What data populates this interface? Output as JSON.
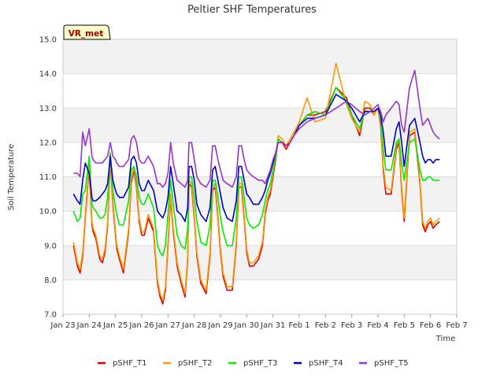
{
  "chart_data": {
    "type": "line",
    "title": "Peltier SHF Temperatures",
    "xlabel": "Time",
    "ylabel": "Soil Temperature",
    "ylim": [
      7.0,
      15.0
    ],
    "y_ticks": [
      "7.0",
      "8.0",
      "9.0",
      "10.0",
      "11.0",
      "12.0",
      "13.0",
      "14.0",
      "15.0"
    ],
    "x_tick_labels": [
      "Jan 23",
      "Jan 24",
      "Jan 25",
      "Jan 26",
      "Jan 27",
      "Jan 28",
      "Jan 29",
      "Jan 30",
      "Jan 31",
      "Feb 1",
      "Feb 2",
      "Feb 3",
      "Feb 4",
      "Feb 5",
      "Feb 6",
      "Feb 7"
    ],
    "x_unit": "days since Jan 23 (tick index)",
    "xlim": [
      0,
      15
    ],
    "badge": "VR_met",
    "grid": "horizontal bands",
    "legend_position": "bottom",
    "series": [
      {
        "name": "pSHF_T1",
        "color": "#dd0000",
        "x": [
          0.4,
          0.55,
          0.65,
          0.75,
          0.85,
          1.0,
          1.1,
          1.15,
          1.25,
          1.4,
          1.5,
          1.6,
          1.7,
          1.8,
          1.9,
          2.0,
          2.05,
          2.15,
          2.3,
          2.5,
          2.6,
          2.7,
          2.8,
          2.9,
          3.0,
          3.1,
          3.25,
          3.45,
          3.6,
          3.7,
          3.8,
          3.9,
          4.0,
          4.1,
          4.2,
          4.35,
          4.5,
          4.65,
          4.75,
          4.8,
          4.9,
          5.0,
          5.1,
          5.25,
          5.45,
          5.6,
          5.7,
          5.8,
          5.9,
          6.0,
          6.1,
          6.25,
          6.45,
          6.6,
          6.7,
          6.8,
          6.9,
          7.0,
          7.1,
          7.25,
          7.45,
          7.6,
          7.7,
          7.8,
          7.9,
          8.0,
          8.1,
          8.2,
          8.35,
          8.5,
          8.65,
          8.8,
          9.0,
          9.3,
          9.6,
          10.0,
          10.4,
          10.8,
          11.0,
          11.15,
          11.3,
          11.5,
          11.7,
          11.85,
          12.0,
          12.1,
          12.2,
          12.3,
          12.5,
          12.7,
          12.8,
          12.9,
          13.0,
          13.2,
          13.4,
          13.6,
          13.7,
          13.8,
          13.9,
          14.0,
          14.1,
          14.2,
          14.35
        ],
        "y": [
          9.0,
          8.4,
          8.2,
          8.7,
          9.8,
          11.3,
          9.6,
          9.4,
          9.2,
          8.6,
          8.5,
          8.8,
          9.6,
          11.5,
          10.2,
          9.3,
          8.9,
          8.6,
          8.2,
          9.4,
          10.8,
          11.2,
          10.7,
          9.7,
          9.3,
          9.3,
          9.8,
          9.4,
          7.9,
          7.5,
          7.3,
          7.7,
          9.0,
          10.4,
          9.4,
          8.4,
          7.9,
          7.5,
          8.6,
          10.8,
          10.7,
          9.8,
          8.7,
          7.9,
          7.6,
          8.7,
          10.6,
          10.7,
          9.8,
          8.8,
          8.1,
          7.7,
          7.7,
          9.0,
          10.7,
          10.7,
          9.8,
          8.8,
          8.4,
          8.4,
          8.6,
          9.0,
          9.9,
          10.3,
          10.5,
          11.0,
          11.5,
          12.1,
          12.0,
          11.8,
          12.0,
          12.2,
          12.5,
          12.8,
          12.8,
          12.9,
          13.6,
          13.3,
          12.8,
          12.5,
          12.2,
          13.0,
          13.0,
          12.8,
          13.0,
          12.5,
          11.2,
          10.5,
          10.5,
          11.8,
          12.0,
          10.6,
          9.7,
          12.2,
          12.3,
          10.8,
          9.6,
          9.4,
          9.6,
          9.7,
          9.5,
          9.6,
          9.7
        ]
      },
      {
        "name": "pSHF_T2",
        "color": "#ff9900",
        "x": [
          0.4,
          0.55,
          0.65,
          0.75,
          0.85,
          1.0,
          1.1,
          1.15,
          1.25,
          1.4,
          1.5,
          1.6,
          1.7,
          1.8,
          1.9,
          2.0,
          2.05,
          2.15,
          2.3,
          2.5,
          2.6,
          2.7,
          2.8,
          2.9,
          3.0,
          3.1,
          3.25,
          3.45,
          3.6,
          3.7,
          3.8,
          3.9,
          4.0,
          4.1,
          4.2,
          4.35,
          4.5,
          4.65,
          4.75,
          4.8,
          4.9,
          5.0,
          5.1,
          5.25,
          5.45,
          5.6,
          5.7,
          5.8,
          5.9,
          6.0,
          6.1,
          6.25,
          6.45,
          6.6,
          6.7,
          6.8,
          6.9,
          7.0,
          7.1,
          7.25,
          7.45,
          7.6,
          7.7,
          7.8,
          7.9,
          8.0,
          8.1,
          8.2,
          8.35,
          8.5,
          8.65,
          8.8,
          9.0,
          9.3,
          9.6,
          10.0,
          10.4,
          10.8,
          11.0,
          11.15,
          11.3,
          11.5,
          11.7,
          11.85,
          12.0,
          12.1,
          12.2,
          12.3,
          12.5,
          12.7,
          12.8,
          12.9,
          13.0,
          13.2,
          13.4,
          13.6,
          13.7,
          13.8,
          13.9,
          14.0,
          14.1,
          14.2,
          14.35
        ],
        "y": [
          9.1,
          8.5,
          8.3,
          8.8,
          9.9,
          11.4,
          9.7,
          9.5,
          9.3,
          8.7,
          8.6,
          8.9,
          9.7,
          11.6,
          10.3,
          9.4,
          9.0,
          8.7,
          8.3,
          9.5,
          10.9,
          11.3,
          10.8,
          9.8,
          9.4,
          9.4,
          9.9,
          9.5,
          8.0,
          7.6,
          7.4,
          7.8,
          9.1,
          10.5,
          9.5,
          8.5,
          8.0,
          7.6,
          8.7,
          10.9,
          10.8,
          9.9,
          8.8,
          8.0,
          7.7,
          8.8,
          10.7,
          10.8,
          9.9,
          8.9,
          8.2,
          7.8,
          7.8,
          9.1,
          10.8,
          10.8,
          9.9,
          8.9,
          8.5,
          8.5,
          8.7,
          9.1,
          10.0,
          10.4,
          10.6,
          11.1,
          11.6,
          12.2,
          12.1,
          11.9,
          12.1,
          12.3,
          12.6,
          13.3,
          12.6,
          12.7,
          14.3,
          13.1,
          12.7,
          12.5,
          12.3,
          13.2,
          13.1,
          12.8,
          13.0,
          12.6,
          11.3,
          10.7,
          10.6,
          11.9,
          12.1,
          10.7,
          9.8,
          12.3,
          12.4,
          10.9,
          9.7,
          9.5,
          9.7,
          9.8,
          9.6,
          9.7,
          9.8
        ]
      },
      {
        "name": "pSHF_T3",
        "color": "#00ee00",
        "x": [
          0.4,
          0.55,
          0.65,
          0.75,
          0.85,
          1.0,
          1.1,
          1.15,
          1.25,
          1.4,
          1.5,
          1.6,
          1.7,
          1.8,
          1.9,
          2.0,
          2.05,
          2.15,
          2.3,
          2.5,
          2.6,
          2.7,
          2.8,
          2.9,
          3.0,
          3.1,
          3.25,
          3.45,
          3.6,
          3.7,
          3.8,
          3.9,
          4.0,
          4.1,
          4.2,
          4.35,
          4.5,
          4.65,
          4.75,
          4.8,
          4.9,
          5.0,
          5.1,
          5.25,
          5.45,
          5.6,
          5.7,
          5.8,
          5.9,
          6.0,
          6.1,
          6.25,
          6.45,
          6.6,
          6.7,
          6.8,
          6.9,
          7.0,
          7.1,
          7.25,
          7.45,
          7.6,
          7.7,
          7.8,
          7.9,
          8.0,
          8.1,
          8.2,
          8.35,
          8.5,
          8.65,
          8.8,
          9.0,
          9.3,
          9.6,
          10.0,
          10.4,
          10.8,
          11.0,
          11.15,
          11.3,
          11.5,
          11.7,
          11.85,
          12.0,
          12.1,
          12.2,
          12.3,
          12.5,
          12.7,
          12.8,
          12.9,
          13.0,
          13.2,
          13.4,
          13.6,
          13.7,
          13.8,
          13.9,
          14.0,
          14.1,
          14.2,
          14.35
        ],
        "y": [
          10.0,
          9.7,
          9.8,
          10.5,
          10.6,
          11.6,
          10.2,
          10.1,
          10.0,
          9.8,
          9.8,
          9.9,
          10.4,
          11.7,
          10.6,
          10.1,
          9.9,
          9.6,
          9.6,
          10.3,
          11.2,
          11.3,
          11.0,
          10.4,
          10.2,
          10.2,
          10.5,
          10.1,
          9.0,
          8.8,
          8.7,
          9.0,
          9.9,
          10.9,
          10.2,
          9.3,
          9.0,
          8.9,
          9.5,
          11.0,
          11.0,
          10.4,
          9.7,
          9.1,
          9.0,
          9.6,
          10.9,
          10.9,
          10.4,
          9.8,
          9.4,
          9.0,
          9.0,
          9.8,
          11.0,
          11.0,
          10.4,
          9.8,
          9.6,
          9.5,
          9.6,
          9.9,
          10.3,
          10.6,
          10.8,
          11.2,
          11.6,
          12.1,
          12.0,
          11.9,
          12.0,
          12.2,
          12.5,
          12.8,
          12.9,
          12.8,
          13.6,
          13.2,
          12.8,
          12.6,
          12.4,
          12.9,
          12.9,
          12.9,
          13.0,
          12.7,
          11.8,
          11.2,
          11.2,
          12.0,
          12.1,
          11.4,
          10.9,
          12.0,
          12.1,
          11.2,
          10.9,
          10.9,
          11.0,
          11.0,
          10.9,
          10.9,
          10.9
        ]
      },
      {
        "name": "pSHF_T4",
        "color": "#0000cc",
        "x": [
          0.4,
          0.55,
          0.65,
          0.75,
          0.85,
          1.0,
          1.1,
          1.15,
          1.25,
          1.4,
          1.5,
          1.6,
          1.7,
          1.8,
          1.9,
          2.0,
          2.05,
          2.15,
          2.3,
          2.5,
          2.6,
          2.7,
          2.8,
          2.9,
          3.0,
          3.1,
          3.25,
          3.45,
          3.6,
          3.7,
          3.8,
          3.9,
          4.0,
          4.1,
          4.2,
          4.35,
          4.5,
          4.65,
          4.75,
          4.8,
          4.9,
          5.0,
          5.1,
          5.25,
          5.45,
          5.6,
          5.7,
          5.8,
          5.9,
          6.0,
          6.1,
          6.25,
          6.45,
          6.6,
          6.7,
          6.8,
          6.9,
          7.0,
          7.1,
          7.25,
          7.45,
          7.6,
          7.7,
          7.8,
          7.9,
          8.0,
          8.1,
          8.2,
          8.35,
          8.5,
          8.65,
          8.8,
          9.0,
          9.3,
          9.6,
          10.0,
          10.4,
          10.8,
          11.0,
          11.15,
          11.3,
          11.5,
          11.7,
          11.85,
          12.0,
          12.1,
          12.2,
          12.3,
          12.5,
          12.7,
          12.8,
          12.9,
          13.0,
          13.2,
          13.4,
          13.6,
          13.7,
          13.8,
          13.9,
          14.0,
          14.1,
          14.2,
          14.35
        ],
        "y": [
          10.5,
          10.3,
          10.2,
          10.9,
          11.4,
          11.1,
          10.4,
          10.3,
          10.3,
          10.4,
          10.5,
          10.6,
          10.8,
          11.6,
          10.9,
          10.6,
          10.5,
          10.4,
          10.4,
          10.7,
          11.5,
          11.6,
          11.4,
          10.8,
          10.6,
          10.6,
          10.9,
          10.6,
          10.0,
          9.9,
          9.8,
          10.0,
          10.4,
          11.3,
          10.8,
          10.0,
          9.9,
          9.7,
          10.1,
          11.3,
          11.3,
          10.9,
          10.2,
          9.9,
          9.7,
          10.1,
          11.2,
          11.3,
          10.9,
          10.5,
          10.1,
          9.8,
          9.7,
          10.3,
          11.3,
          11.3,
          10.9,
          10.5,
          10.4,
          10.2,
          10.2,
          10.4,
          10.6,
          10.9,
          11.1,
          11.4,
          11.7,
          12.0,
          12.0,
          11.9,
          12.0,
          12.2,
          12.5,
          12.7,
          12.7,
          12.8,
          13.4,
          13.2,
          13.0,
          12.8,
          12.6,
          12.9,
          12.9,
          12.9,
          13.0,
          12.8,
          12.3,
          11.6,
          11.6,
          12.4,
          12.6,
          12.0,
          11.3,
          12.5,
          12.7,
          12.0,
          11.6,
          11.4,
          11.5,
          11.5,
          11.4,
          11.5,
          11.5
        ]
      },
      {
        "name": "pSHF_T5",
        "color": "#9933cc",
        "x": [
          0.4,
          0.55,
          0.65,
          0.75,
          0.85,
          1.0,
          1.1,
          1.15,
          1.25,
          1.4,
          1.5,
          1.6,
          1.7,
          1.8,
          1.9,
          2.0,
          2.05,
          2.15,
          2.3,
          2.5,
          2.6,
          2.7,
          2.8,
          2.9,
          3.0,
          3.1,
          3.25,
          3.45,
          3.6,
          3.7,
          3.8,
          3.9,
          4.0,
          4.1,
          4.2,
          4.35,
          4.5,
          4.65,
          4.75,
          4.8,
          4.9,
          5.0,
          5.1,
          5.25,
          5.45,
          5.6,
          5.7,
          5.8,
          5.9,
          6.0,
          6.1,
          6.25,
          6.45,
          6.6,
          6.7,
          6.8,
          6.9,
          7.0,
          7.1,
          7.25,
          7.45,
          7.6,
          7.7,
          7.8,
          7.9,
          8.0,
          8.1,
          8.2,
          8.35,
          8.5,
          8.65,
          8.8,
          9.0,
          9.3,
          9.6,
          10.0,
          10.4,
          10.8,
          11.0,
          11.15,
          11.3,
          11.5,
          11.7,
          11.85,
          12.0,
          12.1,
          12.2,
          12.3,
          12.5,
          12.7,
          12.8,
          12.9,
          13.0,
          13.2,
          13.4,
          13.6,
          13.7,
          13.8,
          13.9,
          14.0,
          14.1,
          14.2,
          14.35
        ],
        "y": [
          11.1,
          11.1,
          11.0,
          12.3,
          11.9,
          12.4,
          11.6,
          11.5,
          11.4,
          11.4,
          11.4,
          11.5,
          11.6,
          12.0,
          11.6,
          11.5,
          11.4,
          11.3,
          11.3,
          11.5,
          12.1,
          12.2,
          12.0,
          11.5,
          11.4,
          11.4,
          11.6,
          11.3,
          10.8,
          10.8,
          10.7,
          10.8,
          11.1,
          12.0,
          11.4,
          10.9,
          10.8,
          10.7,
          10.9,
          12.0,
          12.0,
          11.5,
          11.0,
          10.8,
          10.7,
          10.9,
          11.9,
          11.9,
          11.5,
          11.2,
          10.9,
          10.8,
          10.7,
          11.0,
          11.9,
          11.9,
          11.5,
          11.2,
          11.1,
          11.0,
          10.9,
          10.9,
          10.8,
          11.0,
          11.2,
          11.5,
          11.7,
          12.0,
          12.0,
          11.9,
          12.0,
          12.2,
          12.4,
          12.6,
          12.7,
          12.8,
          13.0,
          13.2,
          13.1,
          13.0,
          12.9,
          12.8,
          12.9,
          13.0,
          13.1,
          12.9,
          12.6,
          12.8,
          13.0,
          13.2,
          13.1,
          12.5,
          12.3,
          13.6,
          14.1,
          13.0,
          12.5,
          12.6,
          12.7,
          12.5,
          12.3,
          12.2,
          12.1
        ]
      }
    ]
  }
}
